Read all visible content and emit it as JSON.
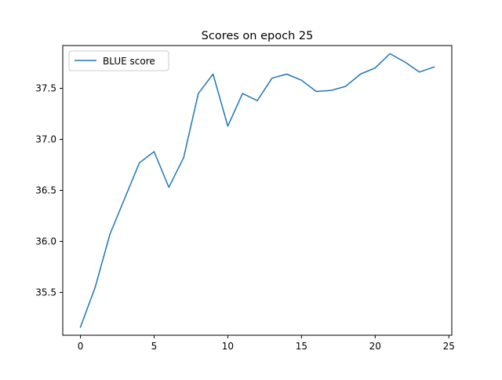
{
  "chart_data": {
    "type": "line",
    "title": "Scores on epoch 25",
    "xlabel": "",
    "ylabel": "",
    "x": [
      0,
      1,
      2,
      3,
      4,
      5,
      6,
      7,
      8,
      9,
      10,
      11,
      12,
      13,
      14,
      15,
      16,
      17,
      18,
      19,
      20,
      21,
      22,
      23,
      24
    ],
    "series": [
      {
        "name": "BLUE score",
        "color": "#1f77b4",
        "values": [
          35.16,
          35.55,
          36.07,
          36.42,
          36.77,
          36.88,
          36.53,
          36.82,
          37.45,
          37.64,
          37.13,
          37.45,
          37.38,
          37.6,
          37.64,
          37.58,
          37.47,
          37.48,
          37.52,
          37.64,
          37.7,
          37.84,
          37.76,
          37.66,
          37.71
        ]
      }
    ],
    "xlim": [
      -1.2,
      25.2
    ],
    "ylim": [
      35.08,
      37.92
    ],
    "xticks": [
      0,
      5,
      10,
      15,
      20,
      25
    ],
    "xtick_labels": [
      "0",
      "5",
      "10",
      "15",
      "20",
      "25"
    ],
    "yticks": [
      35.5,
      36.0,
      36.5,
      37.0,
      37.5
    ],
    "ytick_labels": [
      "35.5",
      "36.0",
      "36.5",
      "37.0",
      "37.5"
    ],
    "grid": false,
    "legend_position": "upper-left"
  }
}
